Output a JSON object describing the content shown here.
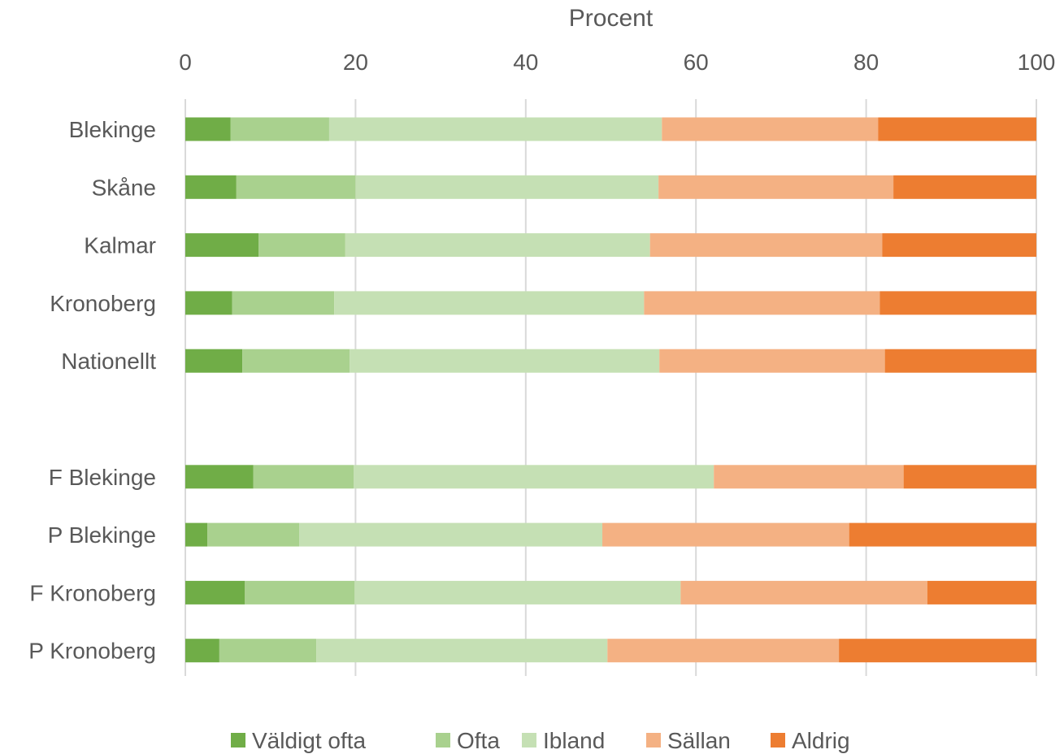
{
  "chart_data": {
    "type": "bar",
    "orientation": "horizontal",
    "stacked": true,
    "title": "",
    "xlabel": "Procent",
    "ylabel": "",
    "xlim": [
      0,
      100
    ],
    "xticks": [
      "0",
      "20",
      "40",
      "60",
      "80",
      "100"
    ],
    "x_axis_position": "top",
    "grid": true,
    "legend_position": "bottom",
    "categories": [
      "Blekinge",
      "Skåne",
      "Kalmar",
      "Kronoberg",
      "Nationellt",
      "",
      "F Blekinge",
      "P Blekinge",
      "F Kronoberg",
      "P Kronoberg"
    ],
    "series": [
      {
        "name": "Väldigt ofta",
        "color": "#70ad47",
        "values": [
          5.3,
          6.0,
          8.6,
          5.5,
          6.7,
          null,
          8.0,
          2.6,
          7.0,
          4.0
        ]
      },
      {
        "name": "Ofta",
        "color": "#a9d18e",
        "values": [
          11.6,
          14.0,
          10.2,
          12.0,
          12.6,
          null,
          11.8,
          10.8,
          12.9,
          11.4
        ]
      },
      {
        "name": "Ibland",
        "color": "#c5e0b4",
        "values": [
          39.1,
          35.6,
          35.8,
          36.4,
          36.4,
          null,
          42.3,
          35.6,
          38.3,
          34.2
        ]
      },
      {
        "name": "Sällan",
        "color": "#f4b183",
        "values": [
          25.4,
          27.6,
          27.3,
          27.7,
          26.5,
          null,
          22.3,
          29.0,
          29.0,
          27.2
        ]
      },
      {
        "name": "Aldrig",
        "color": "#ed7d31",
        "values": [
          18.6,
          16.8,
          18.1,
          18.4,
          17.8,
          null,
          15.6,
          22.0,
          12.8,
          23.2
        ]
      }
    ]
  }
}
